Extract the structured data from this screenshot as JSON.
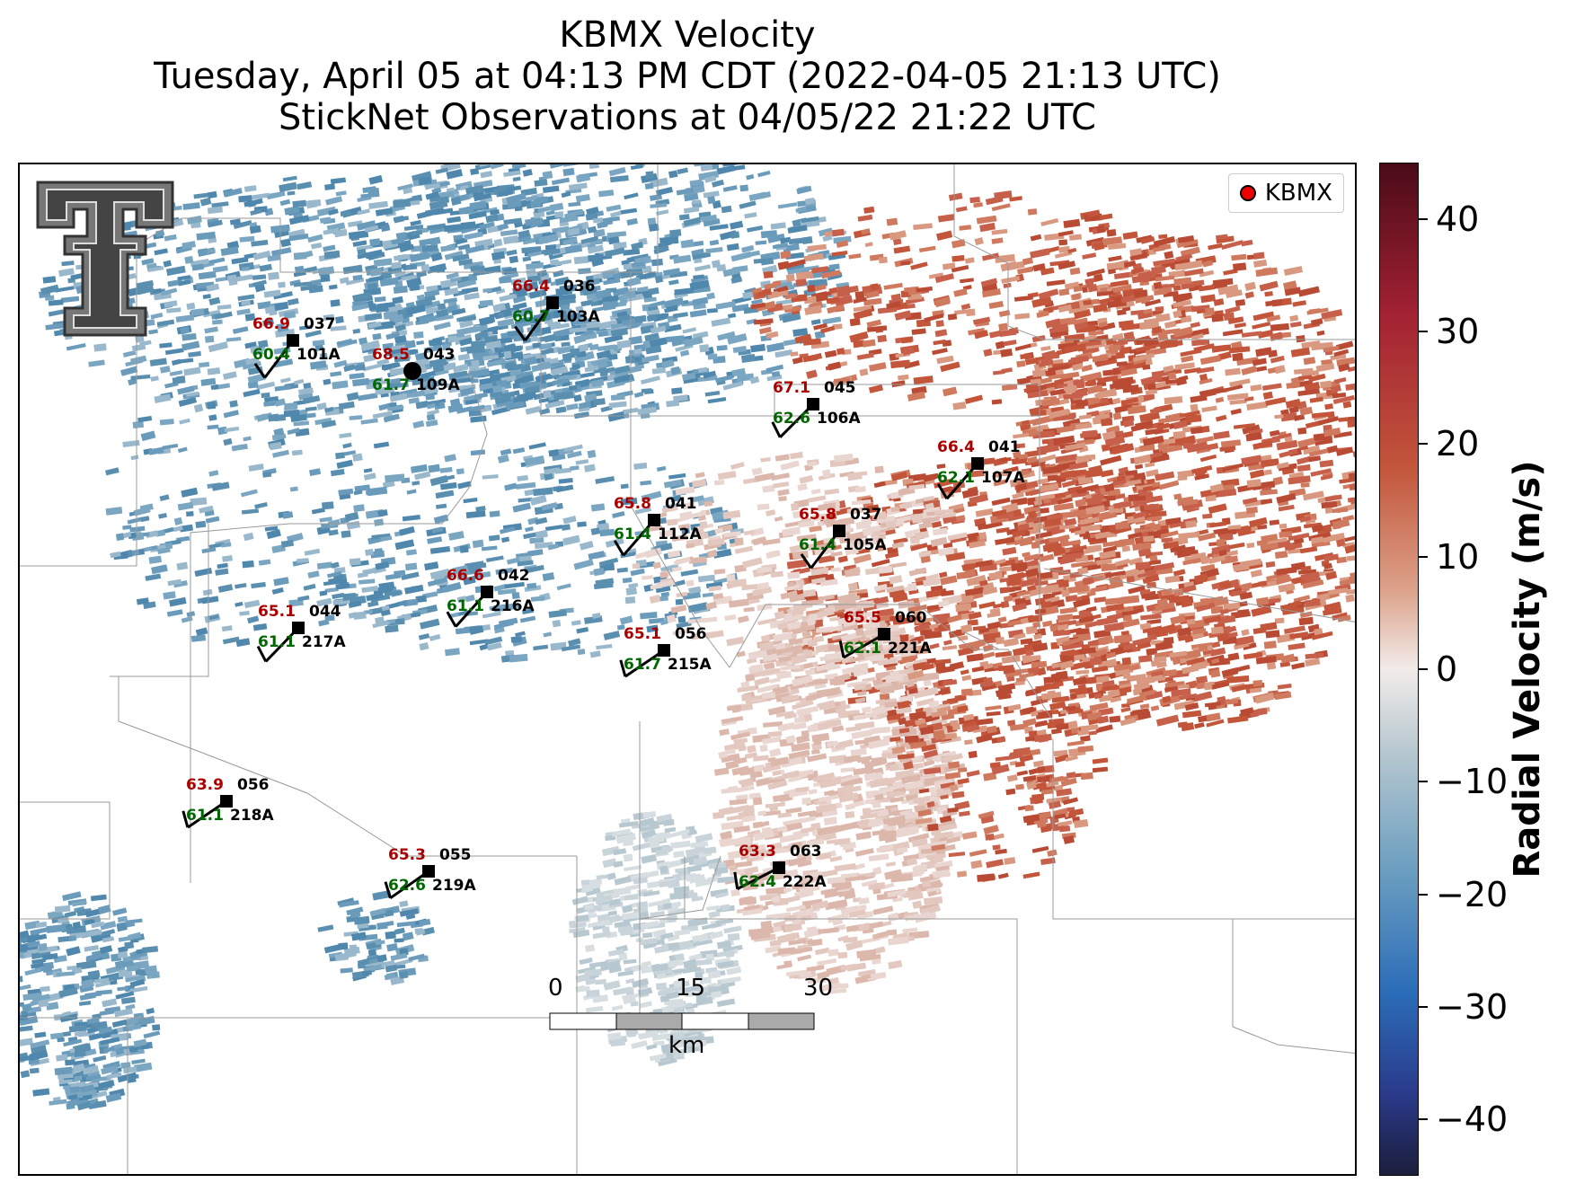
{
  "title": {
    "line1": "KBMX Velocity",
    "line2": "Tuesday, April 05 at 04:13 PM CDT (2022-04-05 21:13 UTC)",
    "line3": "StickNet Observations at 04/05/22 21:22 UTC"
  },
  "legend": {
    "label": "KBMX",
    "marker_color": "#e00000"
  },
  "colorbar": {
    "label": "Radial Velocity (m/s)",
    "ticks": [
      "40",
      "30",
      "20",
      "10",
      "0",
      "−10",
      "−20",
      "−30",
      "−40"
    ],
    "range": [
      -45,
      45
    ],
    "colors": {
      "max": "#4a0a18",
      "zero": "#f2ecea",
      "min": "#1c1e3c"
    }
  },
  "scalebar": {
    "labels": [
      "0",
      "15",
      "30"
    ],
    "unit": "km"
  },
  "logo": {
    "name": "texas-tech-double-t-logo"
  },
  "stations": [
    {
      "id": "101A",
      "temp": "66.9",
      "dew": "60.4",
      "dir": "037"
    },
    {
      "id": "109A",
      "temp": "68.5",
      "dew": "61.7",
      "dir": "043",
      "calm": true
    },
    {
      "id": "103A",
      "temp": "66.4",
      "dew": "60.7",
      "dir": "036"
    },
    {
      "id": "106A",
      "temp": "67.1",
      "dew": "62.6",
      "dir": "045"
    },
    {
      "id": "107A",
      "temp": "66.4",
      "dew": "62.1",
      "dir": "041"
    },
    {
      "id": "112A",
      "temp": "65.8",
      "dew": "61.4",
      "dir": "041"
    },
    {
      "id": "105A",
      "temp": "65.8",
      "dew": "61.4",
      "dir": "037"
    },
    {
      "id": "216A",
      "temp": "66.6",
      "dew": "61.1",
      "dir": "042"
    },
    {
      "id": "217A",
      "temp": "65.1",
      "dew": "61.1",
      "dir": "044"
    },
    {
      "id": "215A",
      "temp": "65.1",
      "dew": "61.7",
      "dir": "056"
    },
    {
      "id": "221A",
      "temp": "65.5",
      "dew": "62.1",
      "dir": "060"
    },
    {
      "id": "218A",
      "temp": "63.9",
      "dew": "61.1",
      "dir": "056"
    },
    {
      "id": "219A",
      "temp": "65.3",
      "dew": "62.6",
      "dir": "055"
    },
    {
      "id": "222A",
      "temp": "63.3",
      "dew": "62.4",
      "dir": "063"
    }
  ],
  "colors": {
    "temp": "#aa0000",
    "dew": "#006600"
  }
}
